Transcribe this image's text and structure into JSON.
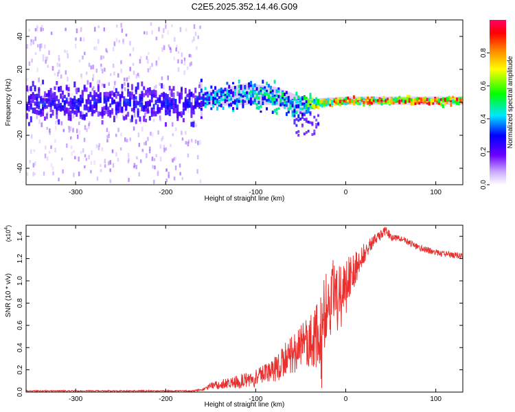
{
  "title": "C2E5.2025.352.14.46.G09",
  "chart_data": [
    {
      "type": "heatmap",
      "xlabel": "Height of straight line (km)",
      "ylabel": "Frequency (Hz)",
      "xlim": [
        -355,
        130
      ],
      "ylim": [
        -50,
        50
      ],
      "xticks": [
        -300,
        -200,
        -100,
        0,
        100
      ],
      "yticks": [
        -40,
        -20,
        0,
        20,
        40
      ],
      "colorbar": {
        "label": "Normalized spectral amplitude",
        "range": [
          0.0,
          1.0
        ],
        "ticks": [
          0.0,
          0.2,
          0.4,
          0.6,
          0.8
        ],
        "tick_labels": [
          "0.0",
          "0.2",
          "0.4",
          "0.6",
          "0.8"
        ],
        "colors": [
          "#ffffff",
          "#6a00ff",
          "#0000ff",
          "#00e6ff",
          "#00ff00",
          "#ffff00",
          "#ff8000",
          "#ff0000",
          "#ff0066"
        ]
      },
      "trend": [
        {
          "x": -355,
          "f_center": 0,
          "f_spread": 45,
          "amp": 0.1
        },
        {
          "x": -165,
          "f_center": 0,
          "f_spread": 45,
          "amp": 0.15
        },
        {
          "x": -160,
          "f_center": 2,
          "f_spread": 8,
          "amp": 0.35
        },
        {
          "x": -110,
          "f_center": 5,
          "f_spread": 12,
          "amp": 0.4
        },
        {
          "x": -80,
          "f_center": 4,
          "f_spread": 10,
          "amp": 0.45
        },
        {
          "x": -50,
          "f_center": -2,
          "f_spread": 10,
          "amp": 0.4
        },
        {
          "x": -30,
          "f_center": 0,
          "f_spread": 3,
          "amp": 0.7
        },
        {
          "x": 0,
          "f_center": 1,
          "f_spread": 3,
          "amp": 0.75
        },
        {
          "x": 130,
          "f_center": 1,
          "f_spread": 3,
          "amp": 0.85
        }
      ]
    },
    {
      "type": "line",
      "xlabel": "Height of straight line (km)",
      "ylabel": "SNR (10 * v/v)",
      "scale_label": "(x10",
      "scale_exp": "4",
      "scale_close": ")",
      "xlim": [
        -355,
        130
      ],
      "ylim": [
        0,
        1.5
      ],
      "xticks": [
        -300,
        -200,
        -100,
        0,
        100
      ],
      "yticks": [
        0.0,
        0.2,
        0.4,
        0.6,
        0.8,
        1.0,
        1.2,
        1.4
      ],
      "ytick_labels": [
        "0.0",
        "0.2",
        "0.4",
        "0.6",
        "0.8",
        "1.0",
        "1.2",
        "1.4"
      ],
      "color": "#e8302e",
      "series": [
        {
          "name": "SNR",
          "x": [
            -355,
            -300,
            -250,
            -200,
            -170,
            -160,
            -150,
            -140,
            -130,
            -120,
            -110,
            -100,
            -90,
            -80,
            -70,
            -60,
            -50,
            -40,
            -30,
            -25,
            -20,
            -15,
            -10,
            -5,
            0,
            10,
            20,
            30,
            40,
            45,
            50,
            60,
            70,
            80,
            90,
            100,
            110,
            120,
            130
          ],
          "y": [
            0.01,
            0.01,
            0.01,
            0.01,
            0.01,
            0.02,
            0.05,
            0.07,
            0.08,
            0.09,
            0.11,
            0.12,
            0.16,
            0.2,
            0.27,
            0.33,
            0.4,
            0.46,
            0.52,
            0.65,
            0.85,
            0.95,
            0.95,
            0.9,
            1.0,
            1.1,
            1.25,
            1.35,
            1.42,
            1.45,
            1.4,
            1.38,
            1.35,
            1.3,
            1.28,
            1.25,
            1.24,
            1.23,
            1.22
          ],
          "noise": [
            0.006,
            0.006,
            0.006,
            0.006,
            0.006,
            0.01,
            0.03,
            0.04,
            0.05,
            0.06,
            0.07,
            0.08,
            0.09,
            0.12,
            0.15,
            0.17,
            0.2,
            0.25,
            0.3,
            0.35,
            0.3,
            0.28,
            0.25,
            0.22,
            0.2,
            0.15,
            0.1,
            0.06,
            0.05,
            0.04,
            0.04,
            0.03,
            0.03,
            0.03,
            0.03,
            0.03,
            0.03,
            0.03,
            0.03
          ]
        }
      ]
    }
  ]
}
